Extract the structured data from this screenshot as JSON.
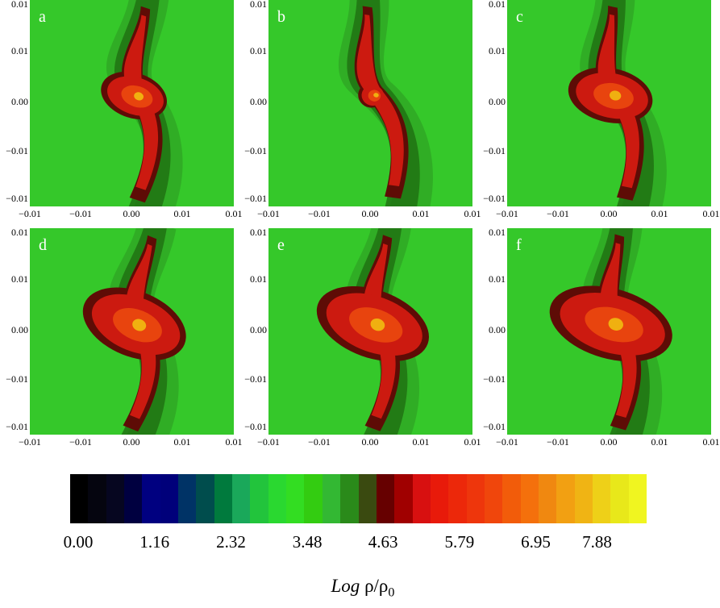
{
  "chart_data": {
    "type": "heatmap",
    "panels": [
      {
        "label": "a",
        "arm_angle": 18,
        "bulge": 1.0,
        "spread": 1.0
      },
      {
        "label": "b",
        "arm_angle": 8,
        "bulge": 0.55,
        "spread": 0.7
      },
      {
        "label": "c",
        "arm_angle": 12,
        "bulge": 1.2,
        "spread": 1.05
      },
      {
        "label": "d",
        "arm_angle": 22,
        "bulge": 1.45,
        "spread": 1.1
      },
      {
        "label": "e",
        "arm_angle": 20,
        "bulge": 1.5,
        "spread": 1.15
      },
      {
        "label": "f",
        "arm_angle": 16,
        "bulge": 1.55,
        "spread": 1.2
      }
    ],
    "y_tick_labels": [
      "0.01",
      "0.01",
      "0.00",
      "−0.01",
      "−0.01"
    ],
    "x_tick_labels": [
      "−0.01",
      "−0.01",
      "0.00",
      "0.01",
      "0.01"
    ],
    "colorbar": {
      "tick_labels": [
        "0.00",
        "1.16",
        "2.32",
        "3.48",
        "4.63",
        "5.79",
        "6.95",
        "7.88"
      ],
      "range": [
        0.0,
        7.88
      ],
      "colors": [
        "#000000",
        "#05050f",
        "#060620",
        "#000040",
        "#000080",
        "#00007a",
        "#003366",
        "#004d4d",
        "#007a3d",
        "#1aa85a",
        "#22c43c",
        "#2ad830",
        "#33dd22",
        "#33cc11",
        "#33b833",
        "#2a8a1a",
        "#3a4a10",
        "#660000",
        "#a00000",
        "#d81010",
        "#e81a0a",
        "#ec280a",
        "#ee360c",
        "#f0460c",
        "#f25c0a",
        "#f4700c",
        "#f08810",
        "#f2a012",
        "#f0b414",
        "#eed018",
        "#e8e81a",
        "#f0f520"
      ]
    },
    "axis_label": {
      "italic": "Log",
      "rest": "ρ/ρ",
      "subscript": "0"
    },
    "palette": {
      "background": "#35c82a",
      "outer": "#2fa824",
      "mid": "#1f6e12",
      "dark": "#5e0c06",
      "arm": "#cc1a10",
      "core": "#e8440e",
      "hot": "#f0b010"
    }
  }
}
